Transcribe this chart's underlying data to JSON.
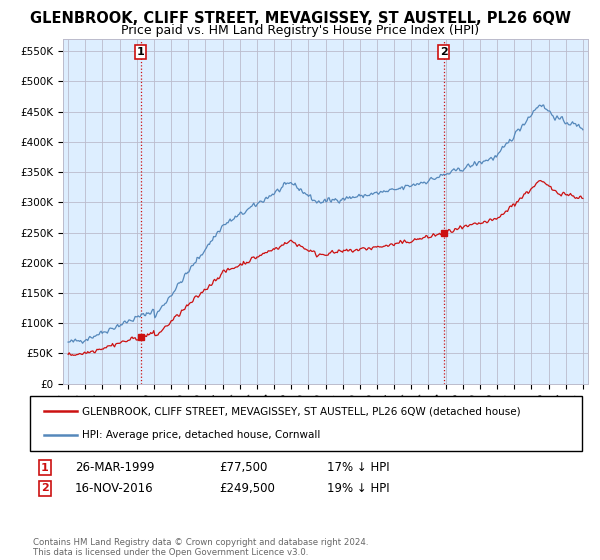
{
  "title": "GLENBROOK, CLIFF STREET, MEVAGISSEY, ST AUSTELL, PL26 6QW",
  "subtitle": "Price paid vs. HM Land Registry's House Price Index (HPI)",
  "ylabel_ticks": [
    "£0",
    "£50K",
    "£100K",
    "£150K",
    "£200K",
    "£250K",
    "£300K",
    "£350K",
    "£400K",
    "£450K",
    "£500K",
    "£550K"
  ],
  "ytick_values": [
    0,
    50000,
    100000,
    150000,
    200000,
    250000,
    300000,
    350000,
    400000,
    450000,
    500000,
    550000
  ],
  "ylim": [
    0,
    570000
  ],
  "xlim_start": 1994.7,
  "xlim_end": 2025.3,
  "hpi_color": "#5588bb",
  "price_color": "#cc1111",
  "plot_bg_color": "#ddeeff",
  "marker1_year": 1999.22,
  "marker1_price": 77500,
  "marker2_year": 2016.88,
  "marker2_price": 249500,
  "legend_line1": "GLENBROOK, CLIFF STREET, MEVAGISSEY, ST AUSTELL, PL26 6QW (detached house)",
  "legend_line2": "HPI: Average price, detached house, Cornwall",
  "marker1_date": "26-MAR-1999",
  "marker1_amount": "£77,500",
  "marker1_note": "17% ↓ HPI",
  "marker2_date": "16-NOV-2016",
  "marker2_amount": "£249,500",
  "marker2_note": "19% ↓ HPI",
  "footer": "Contains HM Land Registry data © Crown copyright and database right 2024.\nThis data is licensed under the Open Government Licence v3.0.",
  "xlabel_years": [
    1995,
    1996,
    1997,
    1998,
    1999,
    2000,
    2001,
    2002,
    2003,
    2004,
    2005,
    2006,
    2007,
    2008,
    2009,
    2010,
    2011,
    2012,
    2013,
    2014,
    2015,
    2016,
    2017,
    2018,
    2019,
    2020,
    2021,
    2022,
    2023,
    2024,
    2025
  ],
  "background_color": "#ffffff",
  "grid_color": "#bbbbcc",
  "vline_color": "#cc1111",
  "title_fontsize": 10.5,
  "subtitle_fontsize": 9
}
